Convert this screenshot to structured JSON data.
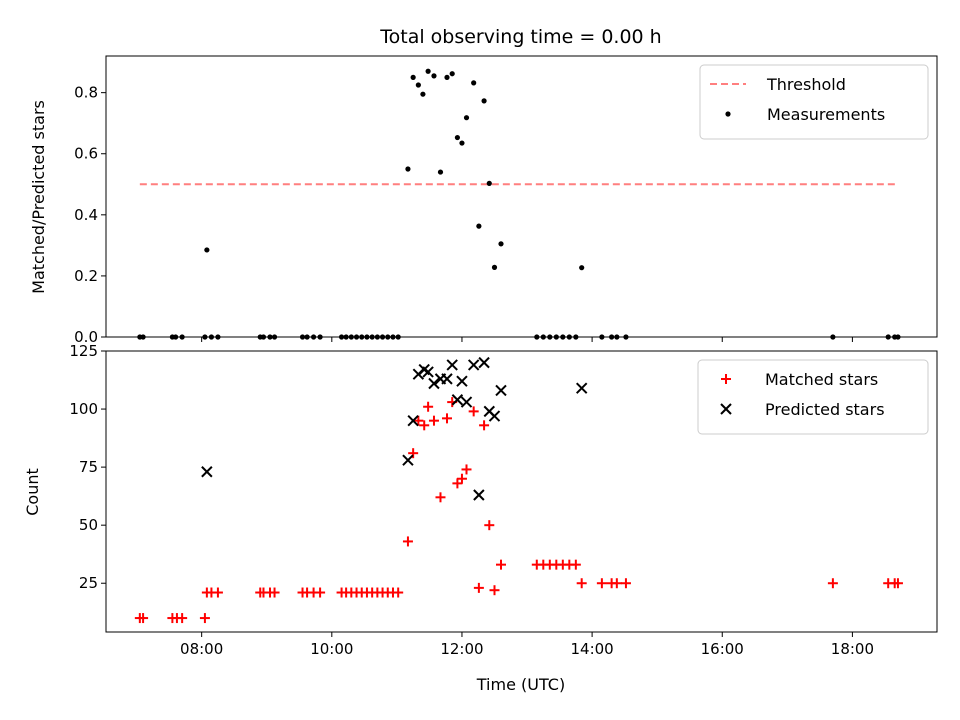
{
  "figure": {
    "title": "Total observing time = 0.00 h"
  },
  "chart_data": [
    {
      "type": "scatter",
      "panel": "top",
      "xlabel": "",
      "ylabel": "Matched/Predicted stars",
      "xlim": [
        6.53,
        19.3
      ],
      "ylim": [
        0,
        0.92
      ],
      "yticks": [
        0.0,
        0.2,
        0.4,
        0.6,
        0.8
      ],
      "ytick_labels": [
        "0.0",
        "0.2",
        "0.4",
        "0.6",
        "0.8"
      ],
      "xticks": [
        8,
        10,
        12,
        14,
        16,
        18
      ],
      "legend_position": "top-right",
      "grid": false,
      "threshold": {
        "name": "Threshold",
        "value": 0.5,
        "x": [
          7.05,
          18.7
        ],
        "color": "#ff7f7f"
      },
      "series": [
        {
          "name": "Measurements",
          "marker": "dot",
          "color": "#000000",
          "points": [
            [
              7.05,
              0
            ],
            [
              7.1,
              0
            ],
            [
              7.55,
              0
            ],
            [
              7.6,
              0
            ],
            [
              7.7,
              0
            ],
            [
              8.08,
              0.285
            ],
            [
              8.05,
              0
            ],
            [
              8.15,
              0
            ],
            [
              8.25,
              0
            ],
            [
              8.9,
              0
            ],
            [
              8.95,
              0
            ],
            [
              9.05,
              0
            ],
            [
              9.12,
              0
            ],
            [
              9.55,
              0
            ],
            [
              9.62,
              0
            ],
            [
              9.72,
              0
            ],
            [
              9.82,
              0
            ],
            [
              10.15,
              0
            ],
            [
              10.22,
              0
            ],
            [
              10.3,
              0
            ],
            [
              10.38,
              0
            ],
            [
              10.46,
              0
            ],
            [
              10.54,
              0
            ],
            [
              10.62,
              0
            ],
            [
              10.7,
              0
            ],
            [
              10.78,
              0
            ],
            [
              10.86,
              0
            ],
            [
              10.94,
              0
            ],
            [
              11.02,
              0
            ],
            [
              11.17,
              0.55
            ],
            [
              11.25,
              0.85
            ],
            [
              11.33,
              0.825
            ],
            [
              11.4,
              0.795
            ],
            [
              11.48,
              0.87
            ],
            [
              11.57,
              0.855
            ],
            [
              11.67,
              0.54
            ],
            [
              11.77,
              0.85
            ],
            [
              11.85,
              0.862
            ],
            [
              11.93,
              0.653
            ],
            [
              12.0,
              0.635
            ],
            [
              12.07,
              0.718
            ],
            [
              12.18,
              0.832
            ],
            [
              12.26,
              0.363
            ],
            [
              12.34,
              0.773
            ],
            [
              12.42,
              0.503
            ],
            [
              12.5,
              0.228
            ],
            [
              12.6,
              0.305
            ],
            [
              13.15,
              0
            ],
            [
              13.25,
              0
            ],
            [
              13.35,
              0
            ],
            [
              13.45,
              0
            ],
            [
              13.55,
              0
            ],
            [
              13.65,
              0
            ],
            [
              13.75,
              0
            ],
            [
              13.84,
              0.227
            ],
            [
              14.15,
              0
            ],
            [
              14.3,
              0
            ],
            [
              14.38,
              0
            ],
            [
              14.52,
              0
            ],
            [
              17.7,
              0
            ],
            [
              18.55,
              0
            ],
            [
              18.65,
              0
            ],
            [
              18.7,
              0
            ]
          ]
        }
      ]
    },
    {
      "type": "scatter",
      "panel": "bottom",
      "xlabel": "Time (UTC)",
      "ylabel": "Count",
      "xlim": [
        6.53,
        19.3
      ],
      "ylim": [
        4,
        125
      ],
      "yticks": [
        25,
        50,
        75,
        100,
        125
      ],
      "ytick_labels": [
        "25",
        "50",
        "75",
        "100",
        "125"
      ],
      "xticks": [
        8,
        10,
        12,
        14,
        16,
        18
      ],
      "xtick_labels": [
        "08:00",
        "10:00",
        "12:00",
        "14:00",
        "16:00",
        "18:00"
      ],
      "legend_position": "top-right",
      "grid": false,
      "series": [
        {
          "name": "Matched stars",
          "marker": "plus",
          "color": "#ff0000",
          "points": [
            [
              7.05,
              10
            ],
            [
              7.1,
              10
            ],
            [
              7.55,
              10
            ],
            [
              7.62,
              10
            ],
            [
              7.7,
              10
            ],
            [
              8.05,
              10
            ],
            [
              8.08,
              21
            ],
            [
              8.15,
              21
            ],
            [
              8.25,
              21
            ],
            [
              8.9,
              21
            ],
            [
              8.95,
              21
            ],
            [
              9.05,
              21
            ],
            [
              9.12,
              21
            ],
            [
              9.55,
              21
            ],
            [
              9.62,
              21
            ],
            [
              9.72,
              21
            ],
            [
              9.82,
              21
            ],
            [
              10.15,
              21
            ],
            [
              10.22,
              21
            ],
            [
              10.3,
              21
            ],
            [
              10.38,
              21
            ],
            [
              10.46,
              21
            ],
            [
              10.54,
              21
            ],
            [
              10.62,
              21
            ],
            [
              10.7,
              21
            ],
            [
              10.78,
              21
            ],
            [
              10.86,
              21
            ],
            [
              10.94,
              21
            ],
            [
              11.02,
              21
            ],
            [
              11.17,
              43
            ],
            [
              11.25,
              81
            ],
            [
              11.33,
              95
            ],
            [
              11.42,
              93
            ],
            [
              11.48,
              101
            ],
            [
              11.57,
              95
            ],
            [
              11.67,
              62
            ],
            [
              11.77,
              96
            ],
            [
              11.85,
              103
            ],
            [
              11.93,
              68
            ],
            [
              12.0,
              70
            ],
            [
              12.07,
              74
            ],
            [
              12.18,
              99
            ],
            [
              12.26,
              23
            ],
            [
              12.34,
              93
            ],
            [
              12.42,
              50
            ],
            [
              12.5,
              22
            ],
            [
              12.6,
              33
            ],
            [
              13.15,
              33
            ],
            [
              13.25,
              33
            ],
            [
              13.35,
              33
            ],
            [
              13.45,
              33
            ],
            [
              13.55,
              33
            ],
            [
              13.65,
              33
            ],
            [
              13.75,
              33
            ],
            [
              13.84,
              25
            ],
            [
              14.15,
              25
            ],
            [
              14.3,
              25
            ],
            [
              14.38,
              25
            ],
            [
              14.52,
              25
            ],
            [
              17.7,
              25
            ],
            [
              18.55,
              25
            ],
            [
              18.65,
              25
            ],
            [
              18.7,
              25
            ]
          ]
        },
        {
          "name": "Predicted stars",
          "marker": "x",
          "color": "#000000",
          "points": [
            [
              8.08,
              73
            ],
            [
              11.17,
              78
            ],
            [
              11.25,
              95
            ],
            [
              11.33,
              115
            ],
            [
              11.42,
              117
            ],
            [
              11.48,
              116
            ],
            [
              11.57,
              111
            ],
            [
              11.67,
              113
            ],
            [
              11.77,
              113
            ],
            [
              11.85,
              119
            ],
            [
              11.93,
              104
            ],
            [
              12.0,
              112
            ],
            [
              12.07,
              103
            ],
            [
              12.18,
              119
            ],
            [
              12.26,
              63
            ],
            [
              12.34,
              120
            ],
            [
              12.42,
              99
            ],
            [
              12.5,
              97
            ],
            [
              12.6,
              108
            ],
            [
              13.84,
              109
            ]
          ]
        }
      ]
    }
  ]
}
